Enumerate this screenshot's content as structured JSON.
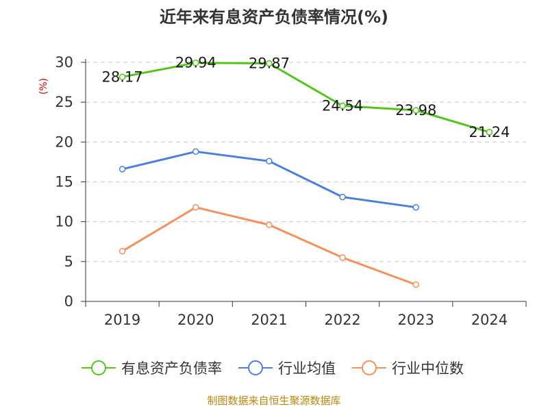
{
  "chart_data": {
    "type": "line",
    "title": "近年来有息资产负债率情况(%)",
    "ylabel": "(%)",
    "xlabel": "",
    "categories": [
      "2019",
      "2020",
      "2021",
      "2022",
      "2023",
      "2024"
    ],
    "ylim": [
      0,
      30
    ],
    "yticks": [
      0,
      5,
      10,
      15,
      20,
      25,
      30
    ],
    "grid": true,
    "series": [
      {
        "name": "有息资产负债率",
        "color": "#52c41a",
        "values": [
          28.17,
          29.94,
          29.87,
          24.54,
          23.98,
          21.24
        ],
        "labels": [
          "28.17",
          "29.94",
          "29.87",
          "24.54",
          "23.98",
          "21.24"
        ]
      },
      {
        "name": "行业均值",
        "color": "#4a7fdc",
        "values": [
          16.6,
          18.8,
          17.6,
          13.1,
          11.8,
          null
        ]
      },
      {
        "name": "行业中位数",
        "color": "#f5905a",
        "values": [
          6.3,
          11.8,
          9.6,
          5.5,
          2.1,
          null
        ]
      }
    ],
    "legend_position": "bottom",
    "source": "制图数据来自恒生聚源数据库"
  }
}
